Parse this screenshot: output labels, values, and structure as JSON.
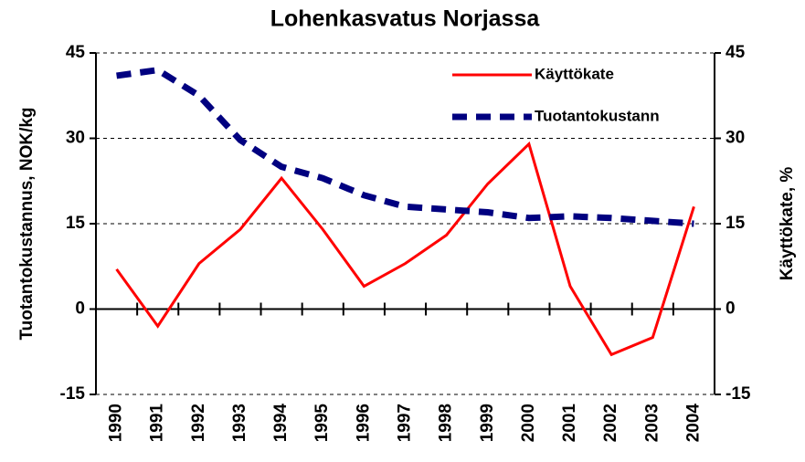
{
  "chart_data": {
    "type": "line",
    "title": "Lohenkasvatus Norjassa",
    "y_label": "Tuotantokustannus, NOK/kg",
    "y2_label": "Käyttökate, %",
    "categories": [
      "1990",
      "1991",
      "1992",
      "1993",
      "1994",
      "1995",
      "1996",
      "1997",
      "1998",
      "1999",
      "2000",
      "2001",
      "2002",
      "2003",
      "2004"
    ],
    "series": [
      {
        "name": "Käyttökate",
        "color": "#ff0000",
        "axis": "y2",
        "style": "solid",
        "values": [
          7,
          -3,
          8,
          14,
          23,
          14,
          4,
          8,
          13,
          22,
          29,
          4,
          -8,
          -5,
          18
        ]
      },
      {
        "name": "Tuotantokustann",
        "color": "#000080",
        "axis": "y",
        "style": "dashed",
        "values": [
          41,
          42,
          37.5,
          29.7,
          25,
          23,
          20,
          18,
          17.5,
          17,
          16,
          16.3,
          16,
          15.5,
          15
        ]
      }
    ],
    "ylim": [
      -15,
      45
    ],
    "yticks": [
      -15,
      0,
      15,
      30,
      45
    ],
    "y2lim": [
      -15,
      45
    ],
    "y2ticks": [
      -15,
      0,
      15,
      30,
      45
    ],
    "grid": true,
    "legend": "upper right"
  }
}
